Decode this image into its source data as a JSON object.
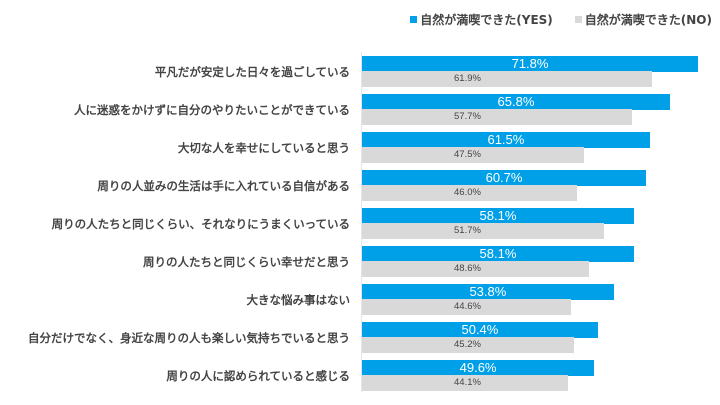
{
  "chart_data": {
    "type": "bar",
    "orientation": "horizontal",
    "categories": [
      "平凡だが安定した日々を過ごしている",
      "人に迷惑をかけずに自分のやりたいことができている",
      "大切な人を幸せにしていると思う",
      "周りの人並みの生活は手に入れている自信がある",
      "周りの人たちと同じくらい、それなりにうまくいっている",
      "周りの人たちと同じくらい幸せだと思う",
      "大きな悩み事はない",
      "自分だけでなく、身近な周りの人も楽しい気持ちでいると思う",
      "周りの人に認められていると感じる"
    ],
    "series": [
      {
        "name": "自然が満喫できた(YES)",
        "color": "#00a0e9",
        "values": [
          71.8,
          65.8,
          61.5,
          60.7,
          58.1,
          58.1,
          53.8,
          50.4,
          49.6
        ],
        "labels": [
          "71.8%",
          "65.8%",
          "61.5%",
          "60.7%",
          "58.1%",
          "58.1%",
          "53.8%",
          "50.4%",
          "49.6%"
        ]
      },
      {
        "name": "自然が満喫できた(NO)",
        "color": "#d9d9d9",
        "values": [
          61.9,
          57.7,
          47.5,
          46.0,
          51.7,
          48.6,
          44.6,
          45.2,
          44.1
        ],
        "labels": [
          "61.9%",
          "57.7%",
          "47.5%",
          "46.0%",
          "51.7%",
          "48.6%",
          "44.6%",
          "45.2%",
          "44.1%"
        ]
      }
    ],
    "unit": "%",
    "legend_position": "top-right",
    "grid": false
  }
}
